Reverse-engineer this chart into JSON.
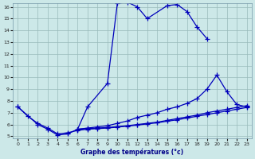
{
  "xlabel": "Graphe des températures (°c)",
  "background_color": "#cce8e8",
  "line_color": "#0000bb",
  "grid_color": "#99bbbb",
  "xlim": [
    0,
    23
  ],
  "ylim": [
    5,
    16
  ],
  "yticks": [
    5,
    6,
    7,
    8,
    9,
    10,
    11,
    12,
    13,
    14,
    15,
    16
  ],
  "xticks": [
    0,
    1,
    2,
    3,
    4,
    5,
    6,
    7,
    8,
    9,
    10,
    11,
    12,
    13,
    14,
    15,
    16,
    17,
    18,
    19,
    20,
    21,
    22,
    23
  ],
  "s1x": [
    0,
    2,
    3,
    4,
    5,
    6,
    7,
    9,
    10,
    11,
    12,
    13,
    15,
    16,
    17,
    18,
    19
  ],
  "s1y": [
    7.5,
    6.0,
    5.6,
    5.1,
    5.2,
    5.6,
    7.5,
    9.5,
    16.3,
    16.4,
    16.0,
    15.0,
    16.1,
    16.2,
    15.6,
    14.3,
    13.3
  ],
  "s2x": [
    6,
    7,
    8,
    9,
    10,
    11,
    12,
    13,
    14,
    15,
    16,
    17,
    18,
    19,
    20,
    21,
    22,
    23
  ],
  "s2y": [
    5.6,
    5.7,
    5.8,
    5.9,
    6.1,
    6.3,
    6.6,
    6.8,
    7.0,
    7.3,
    7.5,
    7.8,
    8.2,
    9.0,
    10.2,
    8.8,
    7.7,
    7.5
  ],
  "s3x": [
    6,
    7,
    8,
    9,
    10,
    11,
    12,
    13,
    14,
    15,
    16,
    17,
    18,
    19,
    20,
    21,
    22,
    23
  ],
  "s3y": [
    5.6,
    5.65,
    5.7,
    5.75,
    5.82,
    5.9,
    6.0,
    6.1,
    6.2,
    6.35,
    6.5,
    6.65,
    6.8,
    7.0,
    7.15,
    7.3,
    7.45,
    7.6
  ],
  "s4x": [
    0,
    1,
    2,
    3,
    4,
    5,
    6,
    7,
    8,
    9,
    10,
    11,
    12,
    13,
    14,
    15,
    16,
    17,
    18,
    19,
    20,
    21,
    22,
    23
  ],
  "s4y": [
    7.5,
    6.7,
    6.1,
    5.7,
    5.2,
    5.3,
    5.5,
    5.6,
    5.65,
    5.7,
    5.78,
    5.86,
    5.95,
    6.05,
    6.15,
    6.28,
    6.4,
    6.55,
    6.7,
    6.85,
    7.0,
    7.15,
    7.3,
    7.45
  ]
}
